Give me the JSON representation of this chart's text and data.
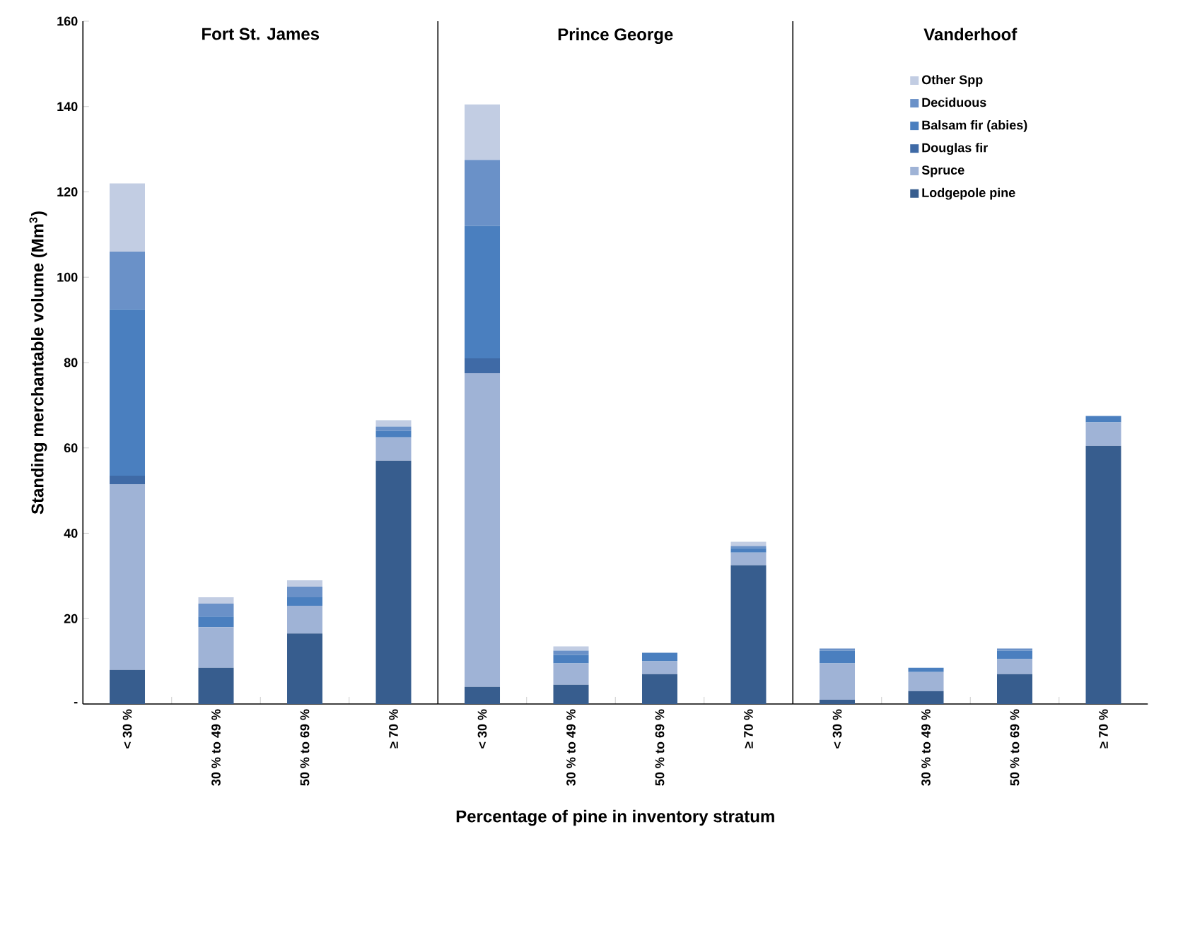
{
  "chart_data": [
    {
      "type": "bar",
      "stacked": true,
      "title": "Fort St. James",
      "ylabel": "Standing merchantable volume (Mm$^{3}$)",
      "categories": [
        "< 30 %",
        "30 % to 49 %",
        "50 % to 69 %",
        "≥ 70 %"
      ],
      "ylim": [
        0,
        160
      ],
      "yticks": [
        {
          "value": 0,
          "label": "-"
        },
        20,
        40,
        60,
        80,
        100,
        120,
        140,
        160
      ],
      "legend": false,
      "series": [
        {
          "color": "#375d8e",
          "values": [
            8,
            8.5,
            16.5,
            57
          ]
        },
        {
          "color": "#9fb3d6",
          "values": [
            43.5,
            9.5,
            6.5,
            5.5
          ]
        },
        {
          "color": "#3f6aa6",
          "values": [
            2,
            0,
            0,
            0
          ]
        },
        {
          "color": "#4a7fbf",
          "values": [
            39,
            2.5,
            2,
            1.5
          ]
        },
        {
          "color": "#6a91c8",
          "values": [
            13.5,
            3,
            2.5,
            1
          ]
        },
        {
          "color": "#c2cde3",
          "values": [
            16,
            1.5,
            1.5,
            1.5
          ]
        }
      ]
    },
    {
      "type": "bar",
      "stacked": true,
      "title": "Prince George",
      "xlabel": "Percentage of pine in inventory stratum",
      "categories": [
        "< 30 %",
        "30 % to 49 %",
        "50 % to 69 %",
        "≥ 70 %"
      ],
      "ylim": [
        0,
        160
      ],
      "tick_labels": "x",
      "legend": false,
      "series": [
        {
          "color": "#375d8e",
          "values": [
            4,
            4.5,
            7,
            32.5
          ]
        },
        {
          "color": "#9fb3d6",
          "values": [
            73.5,
            5,
            3,
            3
          ]
        },
        {
          "color": "#3f6aa6",
          "values": [
            3.5,
            0,
            0,
            0
          ]
        },
        {
          "color": "#4a7fbf",
          "values": [
            31,
            2,
            2,
            1
          ]
        },
        {
          "color": "#6a91c8",
          "values": [
            15.5,
            1,
            0,
            0.5
          ]
        },
        {
          "color": "#c2cde3",
          "values": [
            13,
            1,
            null,
            1
          ]
        }
      ]
    },
    {
      "type": "bar",
      "stacked": true,
      "title": "Vanderhoof",
      "categories": [
        "< 30 %",
        "30 % to 49 %",
        "50 % to 69 %",
        "≥ 70 %"
      ],
      "ylim": [
        0,
        160
      ],
      "tick_labels": "x",
      "legend": "top",
      "series": [
        {
          "name": "Lodgepole pine",
          "color": "#375d8e",
          "values": [
            1,
            3,
            7,
            60.5
          ]
        },
        {
          "name": "Spruce",
          "color": "#9fb3d6",
          "values": [
            8.5,
            4.5,
            3.5,
            5.5
          ]
        },
        {
          "name": "Douglas fir",
          "color": "#3f6aa6",
          "values": [
            0,
            0,
            0,
            0
          ]
        },
        {
          "name": "Balsam fir (abies)",
          "color": "#4a7fbf",
          "values": [
            3,
            1,
            2,
            1.5
          ]
        },
        {
          "name": "Deciduous",
          "color": "#6a91c8",
          "values": [
            0.5,
            0,
            0.5,
            0
          ]
        },
        {
          "name": "Other Spp",
          "color": "#c2cde3",
          "values": [
            0,
            null,
            0,
            null
          ]
        }
      ]
    }
  ]
}
